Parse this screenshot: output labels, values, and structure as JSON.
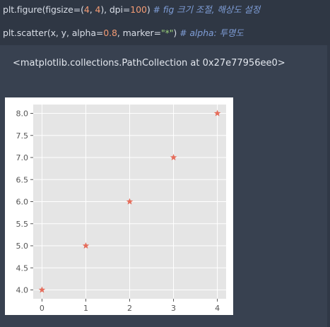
{
  "code": {
    "line1": {
      "prefix": "plt.figure(figsize=(",
      "num1": "4",
      "sep": ", ",
      "num2": "4",
      "mid": "), dpi=",
      "num3": "100",
      "close": ")",
      "comment": " # fig 크기 조절, 해상도 설정"
    },
    "line2": {
      "prefix": "plt.scatter(x, y, alpha=",
      "num1": "0.8",
      "mid": ", marker=",
      "str": "\"*\"",
      "close": ")",
      "comment": " # alpha: 투명도"
    }
  },
  "output": {
    "repr": "<matplotlib.collections.PathCollection at 0x27e77956ee0>"
  },
  "colors": {
    "background": "#384150",
    "code_background": "#2f3744",
    "plot_background": "#e5e5e5",
    "grid": "#ffffff",
    "marker": "#e24a33"
  },
  "chart_data": {
    "type": "scatter",
    "marker": "star",
    "alpha": 0.8,
    "x": [
      0,
      1,
      2,
      3,
      4
    ],
    "y": [
      4,
      5,
      6,
      7,
      8
    ],
    "xlim": [
      -0.2,
      4.2
    ],
    "ylim": [
      3.8,
      8.2
    ],
    "xticks": [
      0,
      1,
      2,
      3,
      4
    ],
    "xtick_labels": [
      "0",
      "1",
      "2",
      "3",
      "4"
    ],
    "yticks": [
      4.0,
      4.5,
      5.0,
      5.5,
      6.0,
      6.5,
      7.0,
      7.5,
      8.0
    ],
    "ytick_labels": [
      "4.0",
      "4.5",
      "5.0",
      "5.5",
      "6.0",
      "6.5",
      "7.0",
      "7.5",
      "8.0"
    ],
    "grid": true,
    "style": "ggplot"
  }
}
